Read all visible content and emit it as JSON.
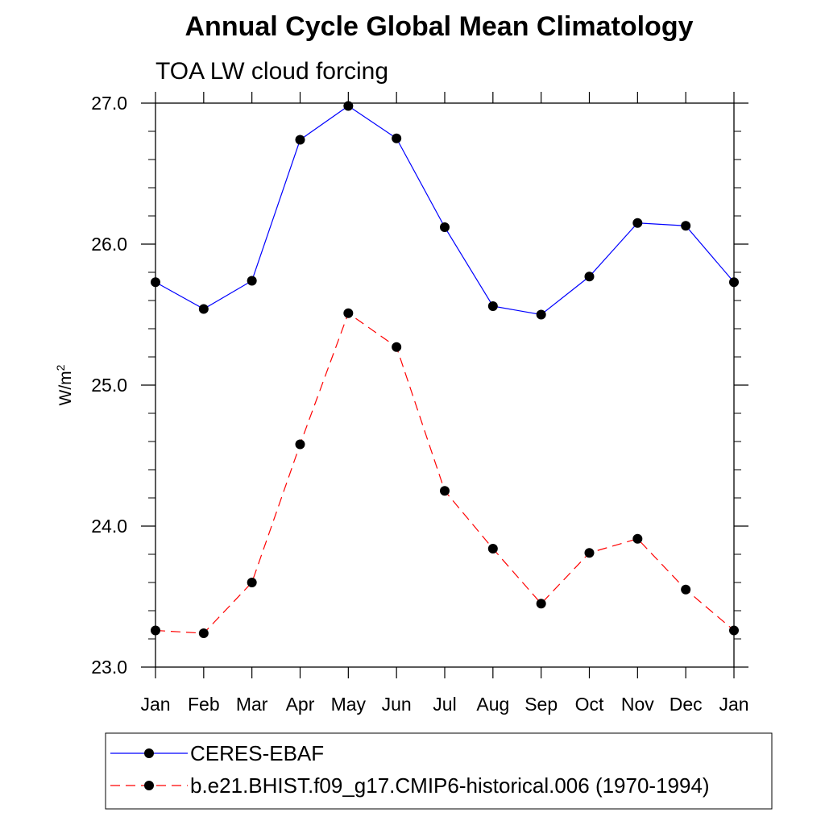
{
  "chart_data": {
    "type": "line",
    "title": "Annual Cycle Global Mean Climatology",
    "subtitle": "TOA LW cloud forcing",
    "ylabel_base": "W/m",
    "ylabel_sup": "2",
    "categories": [
      "Jan",
      "Feb",
      "Mar",
      "Apr",
      "May",
      "Jun",
      "Jul",
      "Aug",
      "Sep",
      "Oct",
      "Nov",
      "Dec",
      "Jan"
    ],
    "ylim": [
      23.0,
      27.0
    ],
    "yticks": [
      "23.0",
      "24.0",
      "25.0",
      "26.0",
      "27.0"
    ],
    "series": [
      {
        "name": "CERES-EBAF",
        "color": "#0000ff",
        "dash": "solid",
        "values": [
          25.73,
          25.54,
          25.74,
          26.74,
          26.98,
          26.75,
          26.12,
          25.56,
          25.5,
          25.77,
          26.15,
          26.13,
          25.73
        ]
      },
      {
        "name": "b.e21.BHIST.f09_g17.CMIP6-historical.006 (1970-1994)",
        "color": "#ff0000",
        "dash": "dashed",
        "values": [
          23.26,
          23.24,
          23.6,
          24.58,
          25.51,
          25.27,
          24.25,
          23.84,
          23.45,
          23.81,
          23.91,
          23.55,
          23.26
        ]
      }
    ]
  }
}
